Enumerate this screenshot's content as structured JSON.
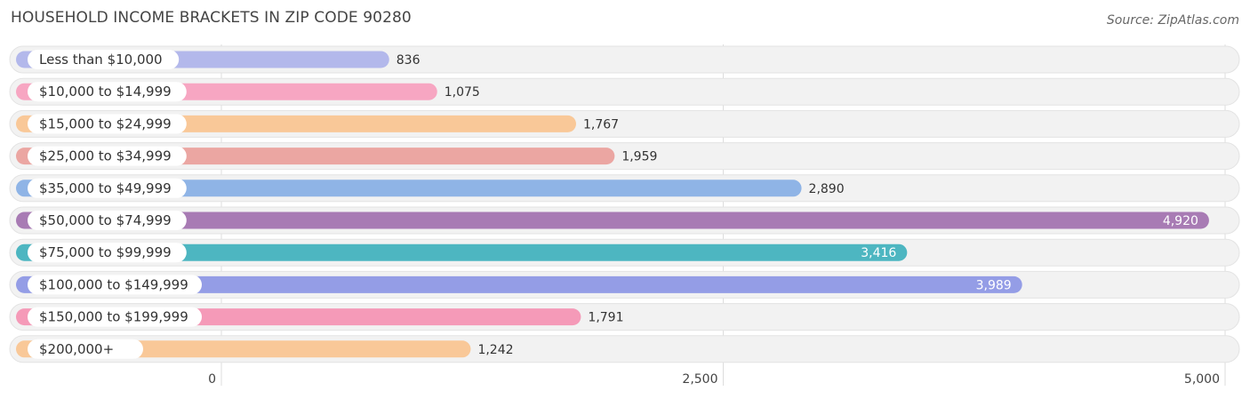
{
  "header": {
    "title": "HOUSEHOLD INCOME BRACKETS IN ZIP CODE 90280",
    "source": "Source: ZipAtlas.com"
  },
  "chart_data": {
    "type": "bar",
    "orientation": "horizontal",
    "title": "HOUSEHOLD INCOME BRACKETS IN ZIP CODE 90280",
    "categories": [
      "Less than $10,000",
      "$10,000 to $14,999",
      "$15,000 to $24,999",
      "$25,000 to $34,999",
      "$35,000 to $49,999",
      "$50,000 to $74,999",
      "$75,000 to $99,999",
      "$100,000 to $149,999",
      "$150,000 to $199,999",
      "$200,000+"
    ],
    "values": [
      836,
      1075,
      1767,
      1959,
      2890,
      4920,
      3416,
      3989,
      1791,
      1242
    ],
    "value_labels": [
      "836",
      "1,075",
      "1,767",
      "1,959",
      "2,890",
      "4,920",
      "3,416",
      "3,989",
      "1,791",
      "1,242"
    ],
    "colors": [
      "#b3b8eb",
      "#f7a6c2",
      "#f9c898",
      "#eba6a2",
      "#8fb4e6",
      "#a87bb4",
      "#4db6c1",
      "#949de6",
      "#f59ab8",
      "#f9c898"
    ],
    "xlim": [
      0,
      5000
    ],
    "xticks": [
      0,
      2500,
      5000
    ],
    "xtick_labels": [
      "0",
      "2,500",
      "5,000"
    ],
    "grid": true,
    "legend": "none"
  }
}
